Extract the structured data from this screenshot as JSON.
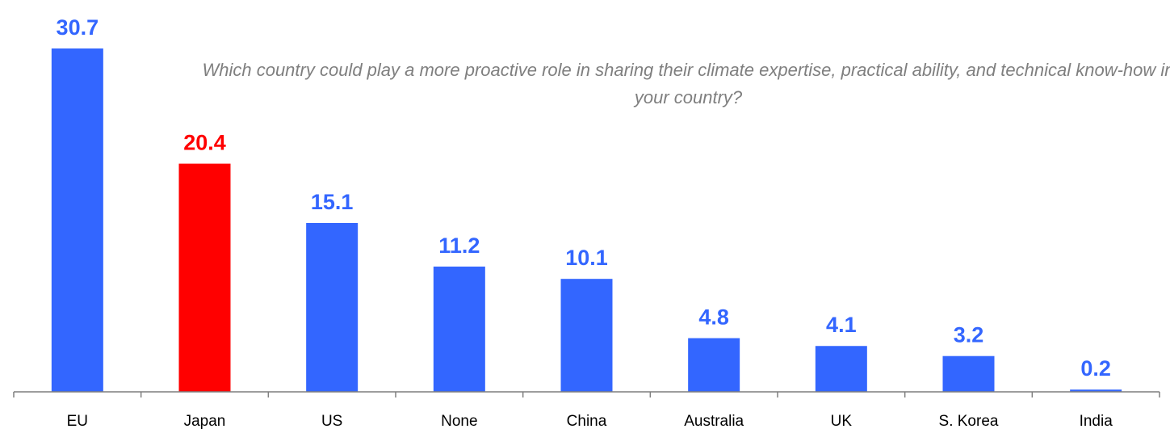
{
  "chart_data": {
    "type": "bar",
    "annotation": "Which country could play a more proactive role in sharing their climate expertise, practical ability, and technical know-how in your country?",
    "categories": [
      "EU",
      "Japan",
      "US",
      "None",
      "China",
      "Australia",
      "UK",
      "S. Korea",
      "India"
    ],
    "values": [
      30.7,
      20.4,
      15.1,
      11.2,
      10.1,
      4.8,
      4.1,
      3.2,
      0.2
    ],
    "value_labels": [
      "30.7",
      "20.4",
      "15.1",
      "11.2",
      "10.1",
      "4.8",
      "4.1",
      "3.2",
      "0.2"
    ],
    "highlight_category": "Japan",
    "colors": {
      "default": "#3366ff",
      "highlight": "#ff0000",
      "axis": "#7f7f7f",
      "annotation": "#7f7f7f"
    },
    "ylim": [
      0,
      30.7
    ],
    "grid": false,
    "legend": "none"
  }
}
